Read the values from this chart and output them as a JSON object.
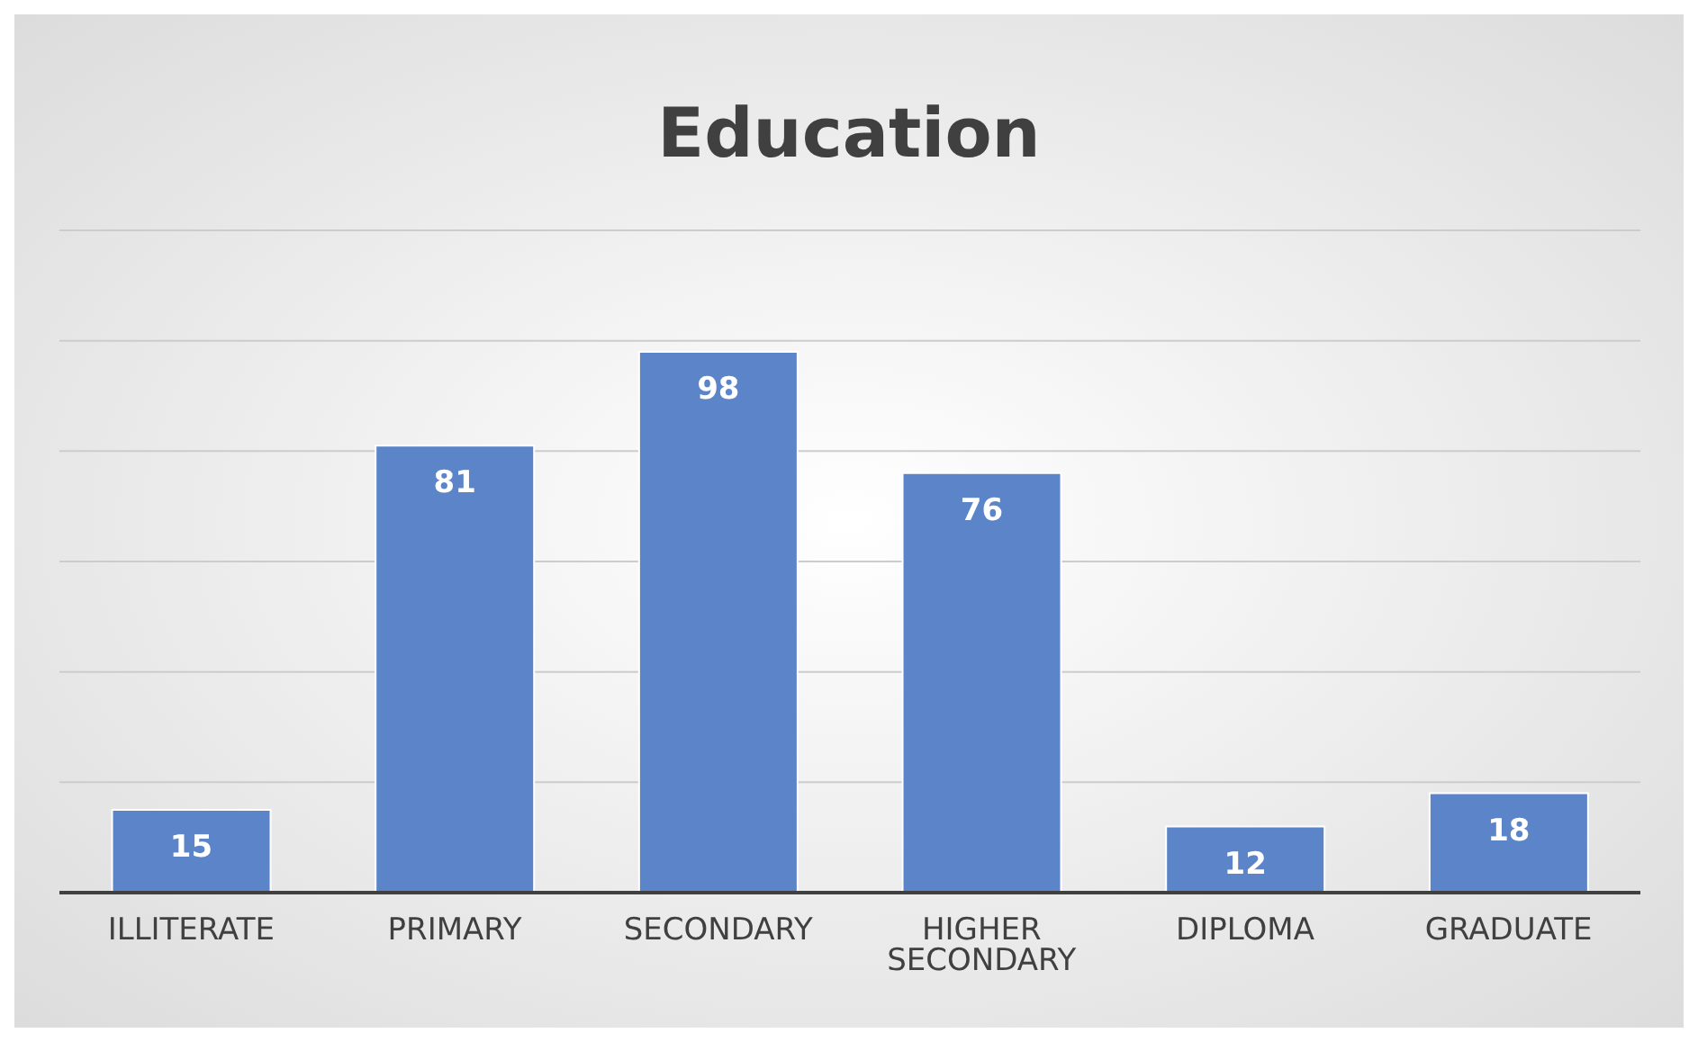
{
  "chart_data": {
    "type": "bar",
    "title": "Education",
    "categories": [
      "ILLITERATE",
      "PRIMARY",
      "SECONDARY",
      "HIGHER SECONDARY",
      "DIPLOMA",
      "GRADUATE"
    ],
    "values": [
      15,
      81,
      98,
      76,
      12,
      18
    ],
    "color": "#5b84c9",
    "ylim": [
      0,
      120
    ],
    "yticks": [
      {
        "value": 0,
        "label": null
      },
      {
        "value": 20,
        "label": null
      },
      {
        "value": 40,
        "label": null
      },
      {
        "value": 60,
        "label": null
      },
      {
        "value": 80,
        "label": null
      },
      {
        "value": 100,
        "label": null
      },
      {
        "value": 120,
        "label": null
      }
    ],
    "grid": "y",
    "data_labels": true,
    "tick_labels": "x"
  }
}
